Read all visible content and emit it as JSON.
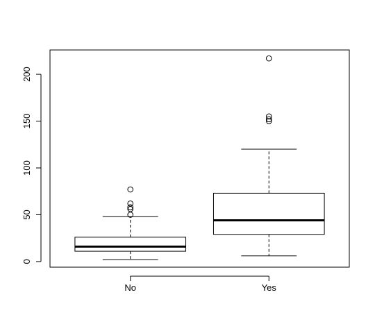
{
  "chart_data": {
    "type": "boxplot",
    "title": "",
    "xlabel": "",
    "ylabel": "",
    "categories": [
      "No",
      "Yes"
    ],
    "boxes": [
      {
        "category": "No",
        "whisker_low": 2,
        "q1": 11,
        "median": 16,
        "q3": 26,
        "whisker_high": 48,
        "outliers": [
          50,
          56,
          58,
          62,
          77
        ]
      },
      {
        "category": "Yes",
        "whisker_low": 6,
        "q1": 29,
        "median": 44,
        "q3": 73,
        "whisker_high": 120,
        "outliers": [
          150,
          152,
          155,
          217
        ]
      }
    ],
    "y_ticks": [
      0,
      50,
      100,
      150,
      200
    ],
    "ylim": [
      -6,
      226
    ],
    "grid": false,
    "legend": "none"
  }
}
